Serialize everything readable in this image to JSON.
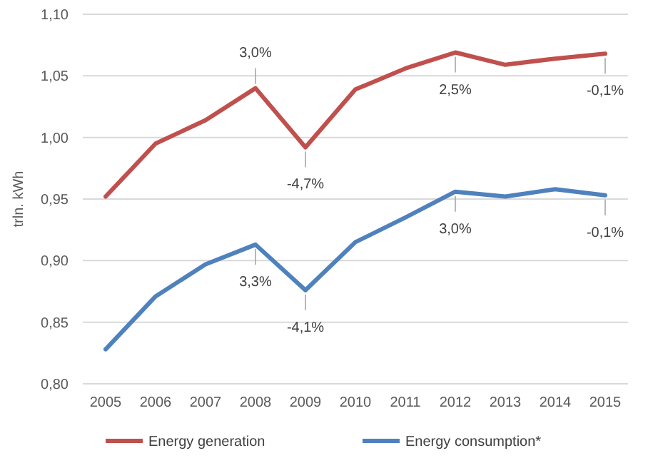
{
  "chart_data": {
    "type": "line",
    "ylabel": "trln. kWh",
    "categories": [
      "2005",
      "2006",
      "2007",
      "2008",
      "2009",
      "2010",
      "2011",
      "2012",
      "2013",
      "2014",
      "2015"
    ],
    "series": [
      {
        "name": "Energy  generation",
        "color": "#c0504d",
        "values": [
          0.952,
          0.995,
          1.014,
          1.04,
          0.992,
          1.039,
          1.056,
          1.069,
          1.059,
          1.064,
          1.068
        ]
      },
      {
        "name": "Energy consumption*",
        "color": "#4f81bd",
        "values": [
          0.828,
          0.871,
          0.897,
          0.913,
          0.876,
          0.915,
          0.935,
          0.956,
          0.952,
          0.958,
          0.953
        ]
      }
    ],
    "ylim": [
      0.8,
      1.1
    ],
    "yticks": [
      {
        "value": 0.8,
        "label": "0,80"
      },
      {
        "value": 0.85,
        "label": "0,85"
      },
      {
        "value": 0.9,
        "label": "0,90"
      },
      {
        "value": 0.95,
        "label": "0,95"
      },
      {
        "value": 1.0,
        "label": "1,00"
      },
      {
        "value": 1.05,
        "label": "1,05"
      },
      {
        "value": 1.1,
        "label": "1,10"
      }
    ],
    "annotations": [
      {
        "text": "3,0%",
        "x": "2008",
        "y": 1.04
      },
      {
        "text": "-4,7%",
        "x": "2009",
        "y": 0.992
      },
      {
        "text": "2,5%",
        "x": "2012",
        "y": 1.069
      },
      {
        "text": "-0,1%",
        "x": "2015",
        "y": 1.068
      },
      {
        "text": "3,3%",
        "x": "2008",
        "y": 0.913
      },
      {
        "text": "-4,1%",
        "x": "2009",
        "y": 0.876
      },
      {
        "text": "3,0%",
        "x": "2012",
        "y": 0.956
      },
      {
        "text": "-0,1%",
        "x": "2015",
        "y": 0.953
      }
    ],
    "grid": "y",
    "legend": "bottom",
    "marker": "none",
    "line_style": "solid"
  }
}
